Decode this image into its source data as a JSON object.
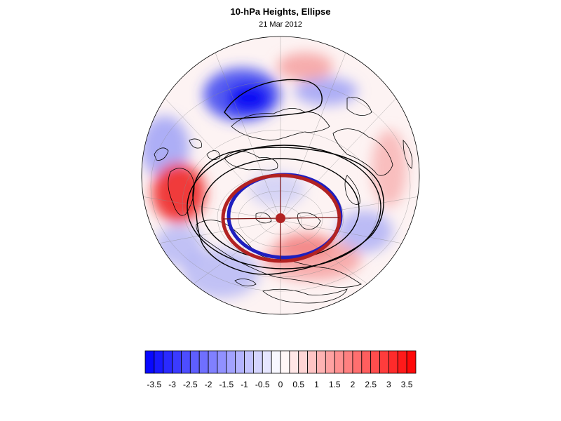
{
  "title": "10-hPa Heights, Ellipse",
  "subtitle": "21 Mar 2012",
  "colorbar": {
    "levels": [
      -3.75,
      -3.5,
      -3.25,
      -3,
      -2.75,
      -2.5,
      -2.25,
      -2,
      -1.75,
      -1.5,
      -1.25,
      -1,
      -0.75,
      -0.5,
      -0.25,
      0,
      0.25,
      0.5,
      0.75,
      1,
      1.25,
      1.5,
      1.75,
      2,
      2.25,
      2.5,
      2.75,
      3,
      3.25,
      3.5,
      3.75
    ],
    "labels": [
      "-3.5",
      "-3",
      "-2.5",
      "-2",
      "-1.5",
      "-1",
      "-0.5",
      "0",
      "0.5",
      "1",
      "1.5",
      "2",
      "2.5",
      "3",
      "3.5"
    ],
    "min_color": "#0000ff",
    "mid_color": "#ffffff",
    "max_color": "#ff0000"
  },
  "map": {
    "projection": "orthographic north polar",
    "ellipse_outer_color": "#b22222",
    "ellipse_inner_color": "#1f1fbf",
    "center_marker_color": "#b22222",
    "contour_color": "#000000"
  }
}
